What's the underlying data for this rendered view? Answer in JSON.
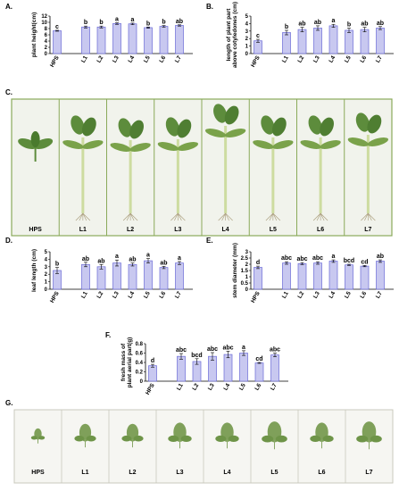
{
  "panel_letters": {
    "A": "A.",
    "B": "B.",
    "C": "C.",
    "D": "D.",
    "E": "E.",
    "F": "F.",
    "G": "G."
  },
  "colors": {
    "bar_fill": "#c8c8f0",
    "bar_stroke": "#6a6ad6",
    "photo_border": "#8aaa5a",
    "photo_bg_c": "#f1f3ec",
    "photo_bg_g": "#f6f6f2",
    "plant_green": "#5d8c3c",
    "stem_green": "#cddca0"
  },
  "chart_data": [
    {
      "id": "A",
      "type": "bar",
      "ylabel": "plant height(cm)",
      "ylim": [
        0,
        12
      ],
      "yticks": [
        0,
        2,
        4,
        6,
        8,
        10,
        12
      ],
      "categories": [
        "HPS",
        "L1",
        "L2",
        "L3",
        "L4",
        "L5",
        "L6",
        "L7"
      ],
      "values": [
        7.3,
        8.5,
        8.5,
        9.6,
        9.5,
        8.3,
        8.7,
        9.0
      ],
      "errors": [
        0.15,
        0.3,
        0.3,
        0.25,
        0.25,
        0.2,
        0.25,
        0.2
      ],
      "letters": [
        "c",
        "b",
        "b",
        "a",
        "a",
        "b",
        "b",
        "ab"
      ]
    },
    {
      "id": "B",
      "type": "bar",
      "ylabel": "length of plant part above cotyledones (cm)",
      "ylim": [
        0,
        5
      ],
      "yticks": [
        0,
        1,
        2,
        3,
        4,
        5
      ],
      "categories": [
        "HPS",
        "L1",
        "L2",
        "L3",
        "L4",
        "L5",
        "L6",
        "L7"
      ],
      "values": [
        1.7,
        2.8,
        3.2,
        3.4,
        3.7,
        3.1,
        3.2,
        3.4
      ],
      "errors": [
        0.2,
        0.3,
        0.3,
        0.3,
        0.2,
        0.3,
        0.3,
        0.2
      ],
      "letters": [
        "c",
        "b",
        "ab",
        "ab",
        "a",
        "b",
        "ab",
        "ab"
      ]
    },
    {
      "id": "D",
      "type": "bar",
      "ylabel": "leaf length (cm)",
      "ylim": [
        0,
        5
      ],
      "yticks": [
        0,
        1,
        2,
        3,
        4,
        5
      ],
      "categories": [
        "HPS",
        "L1",
        "L2",
        "L3",
        "L4",
        "L5",
        "L6",
        "L7"
      ],
      "values": [
        2.5,
        3.3,
        3.0,
        3.5,
        3.3,
        3.8,
        2.9,
        3.5
      ],
      "errors": [
        0.4,
        0.3,
        0.3,
        0.4,
        0.2,
        0.3,
        0.15,
        0.2
      ],
      "letters": [
        "b",
        "ab",
        "ab",
        "a",
        "ab",
        "a",
        "ab",
        "a"
      ]
    },
    {
      "id": "E",
      "type": "bar",
      "ylabel": "stem diameter (mm)",
      "ylim": [
        0,
        3
      ],
      "yticks": [
        0,
        0.5,
        1,
        1.5,
        2,
        2.5,
        3
      ],
      "categories": [
        "HPS",
        "L1",
        "L2",
        "L3",
        "L4",
        "L5",
        "L6",
        "L7"
      ],
      "values": [
        1.75,
        2.1,
        2.05,
        2.1,
        2.25,
        1.95,
        1.85,
        2.25
      ],
      "errors": [
        0.1,
        0.1,
        0.08,
        0.1,
        0.1,
        0.05,
        0.05,
        0.1
      ],
      "letters": [
        "d",
        "abc",
        "abc",
        "abc",
        "a",
        "bcd",
        "cd",
        "ab"
      ]
    },
    {
      "id": "F",
      "type": "bar",
      "ylabel": "fresh mass of plant aerial part(g)",
      "ylim": [
        0,
        0.8
      ],
      "yticks": [
        0,
        0.2,
        0.4,
        0.6,
        0.8
      ],
      "categories": [
        "HPS",
        "L1",
        "L2",
        "L3",
        "L4",
        "L5",
        "L6",
        "L7"
      ],
      "values": [
        0.33,
        0.53,
        0.42,
        0.53,
        0.57,
        0.6,
        0.39,
        0.56
      ],
      "errors": [
        0.03,
        0.06,
        0.06,
        0.08,
        0.07,
        0.05,
        0.01,
        0.04
      ],
      "letters": [
        "d",
        "abc",
        "bcd",
        "abc",
        "abc",
        "a",
        "cd",
        "abc"
      ]
    }
  ],
  "photos": {
    "C": {
      "labels": [
        "HPS",
        "L1",
        "L2",
        "L3",
        "L4",
        "L5",
        "L6",
        "L7"
      ]
    },
    "G": {
      "labels": [
        "HPS",
        "L1",
        "L2",
        "L3",
        "L4",
        "L5",
        "L6",
        "L7"
      ]
    }
  }
}
